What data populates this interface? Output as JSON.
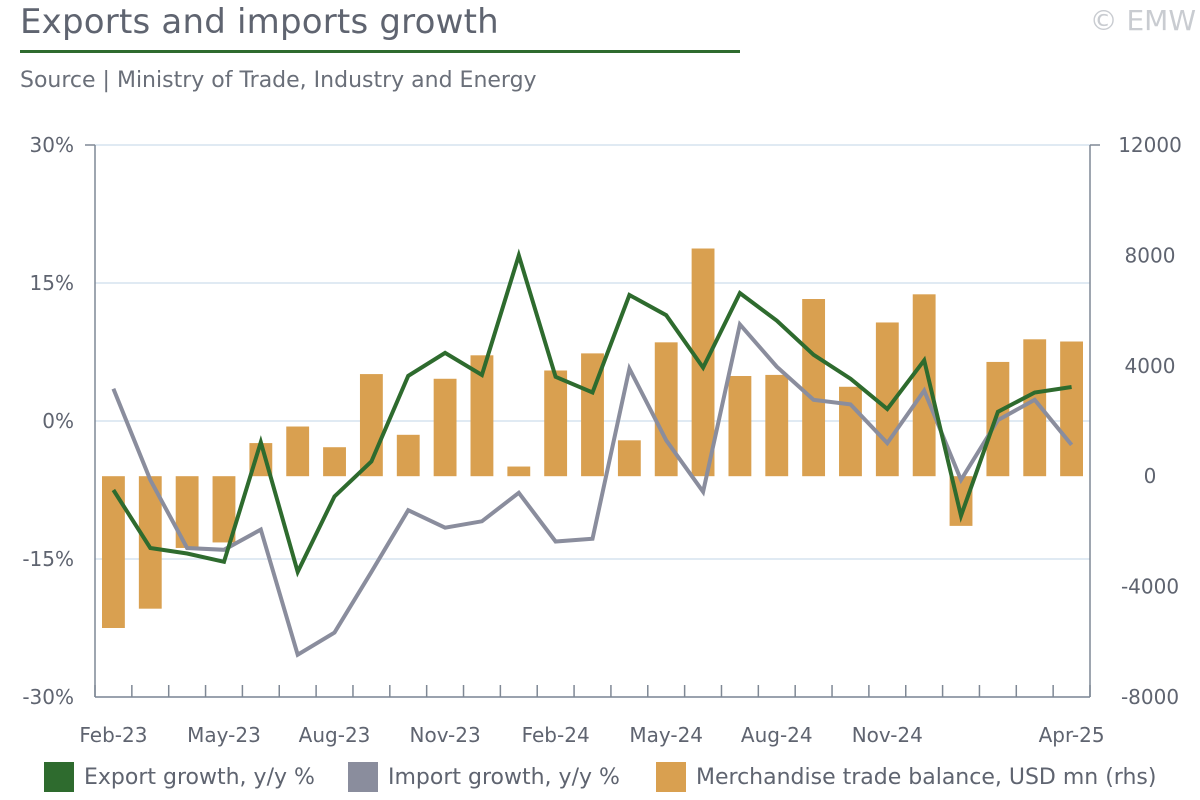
{
  "header": {
    "title": "Exports and imports growth",
    "source": "Source | Ministry of Trade, Industry and Energy",
    "copyright": "© EMW"
  },
  "colors": {
    "export": "#2e6b2e",
    "import": "#8a8d9d",
    "balance": "#d9a050",
    "grid": "#d6e3ef",
    "axis": "#7f8895"
  },
  "legend": [
    {
      "label": "Export growth, y/y %",
      "color": "#2e6b2e"
    },
    {
      "label": "Import growth, y/y %",
      "color": "#8a8d9d"
    },
    {
      "label": "Merchandise trade balance, USD mn (rhs)",
      "color": "#d9a050"
    }
  ],
  "chart_data": {
    "type": "bar",
    "x": [
      "Feb-23",
      "Mar-23",
      "Apr-23",
      "May-23",
      "Jun-23",
      "Jul-23",
      "Aug-23",
      "Sep-23",
      "Oct-23",
      "Nov-23",
      "Dec-23",
      "Jan-24",
      "Feb-24",
      "Mar-24",
      "Apr-24",
      "May-24",
      "Jun-24",
      "Jul-24",
      "Aug-24",
      "Sep-24",
      "Oct-24",
      "Nov-24",
      "Dec-24",
      "Jan-25",
      "Feb-25",
      "Mar-25",
      "Apr-25"
    ],
    "x_tick_labels": [
      "Feb-23",
      "May-23",
      "Aug-23",
      "Nov-23",
      "Feb-24",
      "May-24",
      "Aug-24",
      "Nov-24",
      "Apr-25"
    ],
    "series": [
      {
        "name": "Export growth, y/y %",
        "type": "line",
        "axis": "left",
        "values": [
          -7.5,
          -13.8,
          -14.4,
          -15.3,
          -2.3,
          -16.4,
          -8.2,
          -4.4,
          4.9,
          7.4,
          5.0,
          18.0,
          4.8,
          3.1,
          13.7,
          11.5,
          5.8,
          13.9,
          10.9,
          7.2,
          4.6,
          1.3,
          6.6,
          -10.3,
          1.0,
          3.1,
          3.7
        ]
      },
      {
        "name": "Import growth, y/y %",
        "type": "line",
        "axis": "left",
        "values": [
          3.5,
          -6.4,
          -13.8,
          -14.0,
          -11.8,
          -25.4,
          -23.0,
          -16.4,
          -9.7,
          -11.6,
          -10.9,
          -7.8,
          -13.1,
          -12.8,
          5.7,
          -2.1,
          -7.7,
          10.5,
          5.9,
          2.3,
          1.8,
          -2.4,
          3.3,
          -6.4,
          0.1,
          2.3,
          -2.6
        ]
      },
      {
        "name": "Merchandise trade balance, USD mn (rhs)",
        "type": "bar",
        "axis": "right",
        "values": [
          -5500,
          -4800,
          -2600,
          -2400,
          1200,
          1800,
          1050,
          3700,
          1500,
          3530,
          4380,
          350,
          3830,
          4450,
          1300,
          4850,
          8250,
          3630,
          3670,
          6420,
          3240,
          5570,
          6590,
          -1800,
          4140,
          4960,
          4880
        ]
      }
    ],
    "ylim_left": [
      -30,
      30
    ],
    "yticks_left": [
      "-30%",
      "-15%",
      "0%",
      "15%",
      "30%"
    ],
    "ylim_right": [
      -8000,
      12000
    ],
    "yticks_right": [
      "-8000",
      "-4000",
      "0",
      "4000",
      "8000",
      "12000"
    ],
    "grid": true,
    "legend_position": "bottom"
  }
}
